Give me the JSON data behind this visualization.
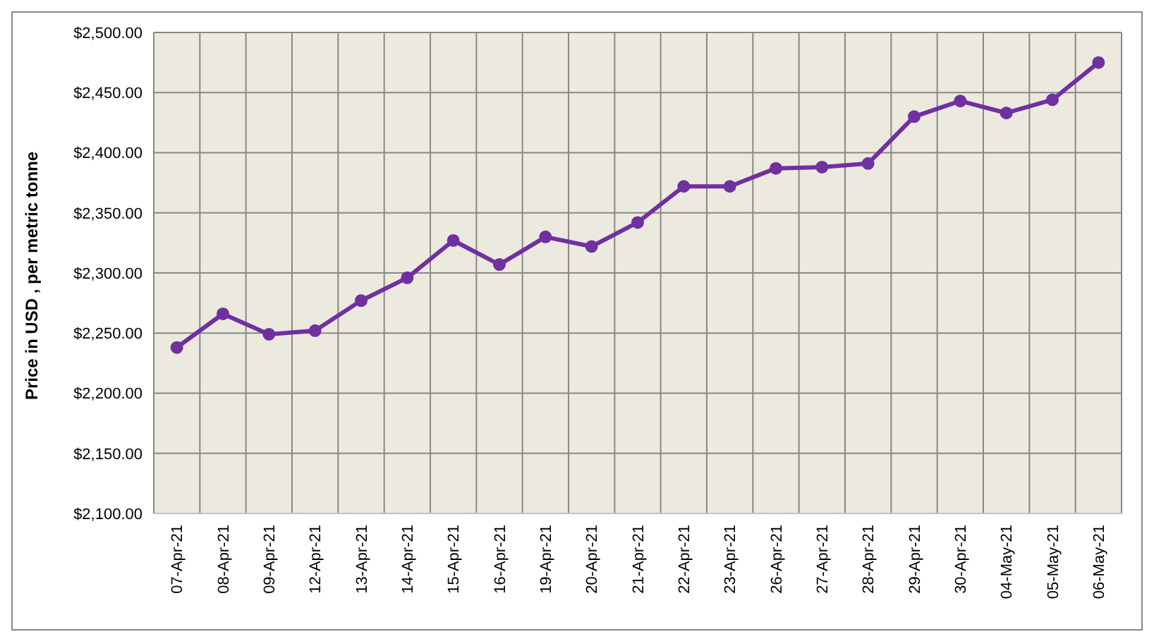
{
  "chart_data": {
    "type": "line",
    "ylabel": "Price in USD , per metric tonne",
    "categories": [
      "07-Apr-21",
      "08-Apr-21",
      "09-Apr-21",
      "12-Apr-21",
      "13-Apr-21",
      "14-Apr-21",
      "15-Apr-21",
      "16-Apr-21",
      "19-Apr-21",
      "20-Apr-21",
      "21-Apr-21",
      "22-Apr-21",
      "23-Apr-21",
      "26-Apr-21",
      "27-Apr-21",
      "28-Apr-21",
      "29-Apr-21",
      "30-Apr-21",
      "04-May-21",
      "05-May-21",
      "06-May-21"
    ],
    "series": [
      {
        "color": "#7030a0",
        "values": [
          2238,
          2266,
          2249,
          2252,
          2277,
          2296,
          2327,
          2307,
          2330,
          2322,
          2342,
          2372,
          2372,
          2387,
          2388,
          2391,
          2430,
          2443,
          2433,
          2444,
          2475
        ]
      }
    ],
    "ylim": [
      2100,
      2500
    ],
    "yticks": [
      {
        "value": 2100,
        "label": "$2,100.00"
      },
      {
        "value": 2150,
        "label": "$2,150.00"
      },
      {
        "value": 2200,
        "label": "$2,200.00"
      },
      {
        "value": 2250,
        "label": "$2,250.00"
      },
      {
        "value": 2300,
        "label": "$2,300.00"
      },
      {
        "value": 2350,
        "label": "$2,350.00"
      },
      {
        "value": 2400,
        "label": "$2,400.00"
      },
      {
        "value": 2450,
        "label": "$2,450.00"
      },
      {
        "value": 2500,
        "label": "$2,500.00"
      }
    ],
    "grid": true,
    "marker": "circle",
    "line_style": "solid",
    "legend": false
  }
}
